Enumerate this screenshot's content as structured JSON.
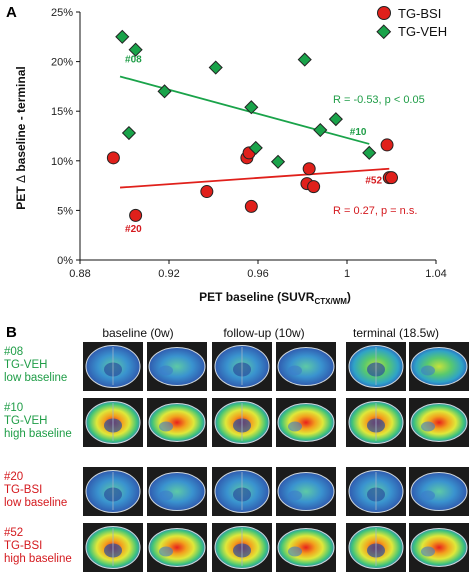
{
  "panel_a_label": "A",
  "panel_b_label": "B",
  "colors": {
    "bsi": "#e0201b",
    "veh": "#1aa34a",
    "bsi_text": "#d4191e",
    "veh_text": "#1f9d47"
  },
  "chart_data": {
    "type": "scatter",
    "xlabel_main": "PET baseline (SUVR",
    "xlabel_sub": "CTX/WM",
    "xlabel_close": ")",
    "ylabel_part1": "PET ",
    "ylabel_delta": "Δ",
    "ylabel_part2": " baseline - terminal",
    "xlim": [
      0.88,
      1.04
    ],
    "ylim": [
      0,
      25
    ],
    "x_ticks": [
      0.88,
      0.92,
      0.96,
      1.0,
      1.04
    ],
    "x_tick_labels": [
      "0.88",
      "0.92",
      "0.96",
      "1",
      "1.04"
    ],
    "y_ticks": [
      0,
      5,
      10,
      15,
      20,
      25
    ],
    "y_tick_labels": [
      "0%",
      "5%",
      "10%",
      "15%",
      "20%",
      "25%"
    ],
    "series": [
      {
        "name": "TG-BSI",
        "marker": "circle",
        "points": [
          {
            "x": 0.895,
            "y": 10.3
          },
          {
            "x": 0.905,
            "y": 4.5
          },
          {
            "x": 0.937,
            "y": 6.9
          },
          {
            "x": 0.955,
            "y": 10.3
          },
          {
            "x": 0.956,
            "y": 10.8
          },
          {
            "x": 0.957,
            "y": 5.4
          },
          {
            "x": 0.982,
            "y": 7.7
          },
          {
            "x": 0.983,
            "y": 9.2
          },
          {
            "x": 0.985,
            "y": 7.4
          },
          {
            "x": 1.018,
            "y": 11.6
          },
          {
            "x": 1.019,
            "y": 8.3
          },
          {
            "x": 1.02,
            "y": 8.3
          }
        ],
        "fit": {
          "x": [
            0.898,
            1.019
          ],
          "y": [
            7.3,
            9.2
          ]
        },
        "annotation": "R = 0.27, p = n.s."
      },
      {
        "name": "TG-VEH",
        "marker": "diamond",
        "points": [
          {
            "x": 0.899,
            "y": 22.5
          },
          {
            "x": 0.902,
            "y": 12.8
          },
          {
            "x": 0.905,
            "y": 21.2
          },
          {
            "x": 0.918,
            "y": 17.0
          },
          {
            "x": 0.941,
            "y": 19.4
          },
          {
            "x": 0.957,
            "y": 15.4
          },
          {
            "x": 0.959,
            "y": 11.3
          },
          {
            "x": 0.969,
            "y": 9.9
          },
          {
            "x": 0.981,
            "y": 20.2
          },
          {
            "x": 0.988,
            "y": 13.1
          },
          {
            "x": 0.995,
            "y": 14.2
          },
          {
            "x": 1.01,
            "y": 10.8
          }
        ],
        "fit": {
          "x": [
            0.898,
            1.01
          ],
          "y": [
            18.5,
            11.7
          ]
        },
        "annotation": "R = -0.53, p < 0.05"
      }
    ],
    "point_labels": [
      {
        "text": "#08",
        "series": "TG-VEH",
        "x": 0.904,
        "y": 19.9
      },
      {
        "text": "#10",
        "series": "TG-VEH",
        "x": 1.005,
        "y": 12.6
      },
      {
        "text": "#20",
        "series": "TG-BSI",
        "x": 0.904,
        "y": 2.8
      },
      {
        "text": "#52",
        "series": "TG-BSI",
        "x": 1.012,
        "y": 7.7
      }
    ]
  },
  "panel_b": {
    "columns": [
      "baseline (0w)",
      "follow-up (10w)",
      "terminal (18.5w)"
    ],
    "rows": [
      {
        "lines": [
          "#08",
          "TG-VEH",
          "low baseline"
        ],
        "group": "veh",
        "intensity": [
          0.3,
          0.35,
          0.55
        ]
      },
      {
        "lines": [
          "#10",
          "TG-VEH",
          "high baseline"
        ],
        "group": "veh",
        "intensity": [
          0.75,
          0.7,
          0.6
        ]
      },
      {
        "lines": [
          "#20",
          "TG-BSI",
          "low baseline"
        ],
        "group": "bsi",
        "intensity": [
          0.3,
          0.25,
          0.3
        ]
      },
      {
        "lines": [
          "#52",
          "TG-BSI",
          "high baseline"
        ],
        "group": "bsi",
        "intensity": [
          0.7,
          0.7,
          0.65
        ]
      }
    ]
  }
}
